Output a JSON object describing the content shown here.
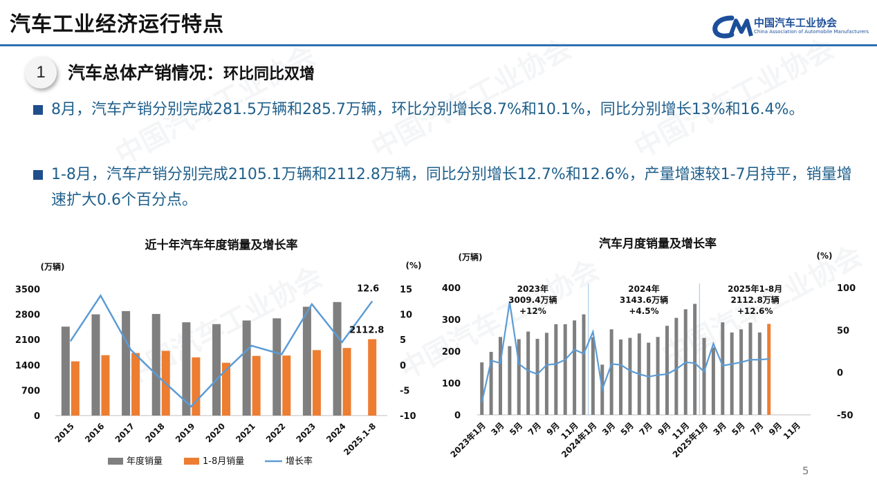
{
  "header": {
    "title": "汽车工业经济运行特点"
  },
  "logo": {
    "cn": "中国汽车工业协会",
    "en": "China Association of Automobile Manufacturers"
  },
  "section": {
    "number": "1",
    "title": "汽车总体产销情况：",
    "subtitle": "环比同比双增"
  },
  "bullets": [
    "8月，汽车产销分别完成281.5万辆和285.7万辆，环比分别增长8.7%和10.1%，同比分别增长13%和16.4%。",
    "1-8月，汽车产销分别完成2105.1万辆和2112.8万辆，同比分别增长12.7%和12.6%，产量增速较1-7月持平，销量增速扩大0.6个百分点。"
  ],
  "page_number": "5",
  "colors": {
    "gray_bar": "#7f7f7f",
    "orange_bar": "#ed7d31",
    "line": "#5b9bd5",
    "accent": "#2a6fb3"
  },
  "chart_data": [
    {
      "type": "bar",
      "title": "近十年汽车年度销量及增长率",
      "y_unit_left": "(万辆)",
      "y_unit_right": "(%)",
      "categories": [
        "2015",
        "2016",
        "2017",
        "2018",
        "2019",
        "2020",
        "2021",
        "2022",
        "2023",
        "2024",
        "2025.1-8"
      ],
      "series": [
        {
          "name": "年度销量",
          "type": "bar",
          "values": [
            2460,
            2800,
            2890,
            2810,
            2580,
            2530,
            2630,
            2690,
            3010,
            3140,
            null
          ]
        },
        {
          "name": "1-8月销量",
          "type": "bar",
          "values": [
            1500,
            1670,
            1730,
            1790,
            1610,
            1460,
            1650,
            1660,
            1810,
            1870,
            2112.8
          ]
        },
        {
          "name": "增长率",
          "type": "line",
          "axis": "right",
          "values": [
            4.7,
            13.7,
            3.0,
            -2.8,
            -8.2,
            -1.9,
            3.8,
            2.1,
            12.0,
            4.5,
            12.6
          ]
        }
      ],
      "y_left": {
        "min": 0,
        "max": 3500,
        "ticks": [
          0,
          700,
          1400,
          2100,
          2800,
          3500
        ]
      },
      "y_right": {
        "min": -10,
        "max": 15,
        "ticks": [
          -10,
          -5,
          0,
          5,
          10,
          15
        ]
      },
      "data_labels": [
        {
          "series": "增长率",
          "category": "2025.1-8",
          "text": "12.6"
        },
        {
          "series": "1-8月销量",
          "category": "2025.1-8",
          "text": "2112.8"
        }
      ],
      "legend": [
        "年度销量",
        "1-8月销量",
        "增长率"
      ],
      "legend_position": "bottom"
    },
    {
      "type": "bar",
      "title": "汽车月度销量及增长率",
      "y_unit_left": "(万辆)",
      "y_unit_right": "(%)",
      "x_labels": [
        "2023年1月",
        "3月",
        "5月",
        "7月",
        "9月",
        "11月",
        "2024年1月",
        "3月",
        "5月",
        "7月",
        "9月",
        "11月",
        "2025年1月",
        "3月",
        "5月",
        "7月",
        "9月",
        "11月"
      ],
      "months": 36,
      "series": [
        {
          "name": "月度销量",
          "type": "bar",
          "values": [
            165,
            198,
            245,
            216,
            238,
            262,
            239,
            258,
            285,
            285,
            297,
            316,
            244,
            158,
            269,
            237,
            242,
            256,
            227,
            245,
            280,
            305,
            332,
            349,
            242,
            212,
            291,
            259,
            269,
            290,
            259,
            286
          ]
        },
        {
          "name": "增长率",
          "type": "line",
          "axis": "right",
          "values": [
            -35,
            14,
            11,
            83,
            10,
            2,
            -2,
            9,
            10,
            15,
            27,
            22,
            48,
            -20,
            10,
            9,
            2,
            -2,
            -5,
            -3,
            -2,
            4,
            12,
            11,
            1,
            34,
            8,
            10,
            12,
            15,
            15,
            16
          ]
        },
        {
          "name": "2025年8月",
          "type": "bar",
          "highlight": true,
          "month_index": 31,
          "values": [
            286
          ]
        }
      ],
      "y_left": {
        "min": 0,
        "max": 400,
        "ticks": [
          0,
          100,
          200,
          300,
          400
        ]
      },
      "y_right": {
        "min": -50,
        "max": 100,
        "ticks": [
          -50,
          0,
          50,
          100
        ]
      },
      "annotations": [
        {
          "year": "2023年",
          "total": "3009.4万辆",
          "growth": "+12%"
        },
        {
          "year": "2024年",
          "total": "3143.6万辆",
          "growth": "+4.5%"
        },
        {
          "year": "2025年1-8月",
          "total": "2112.8万辆",
          "growth": "+12.6%"
        }
      ]
    }
  ]
}
